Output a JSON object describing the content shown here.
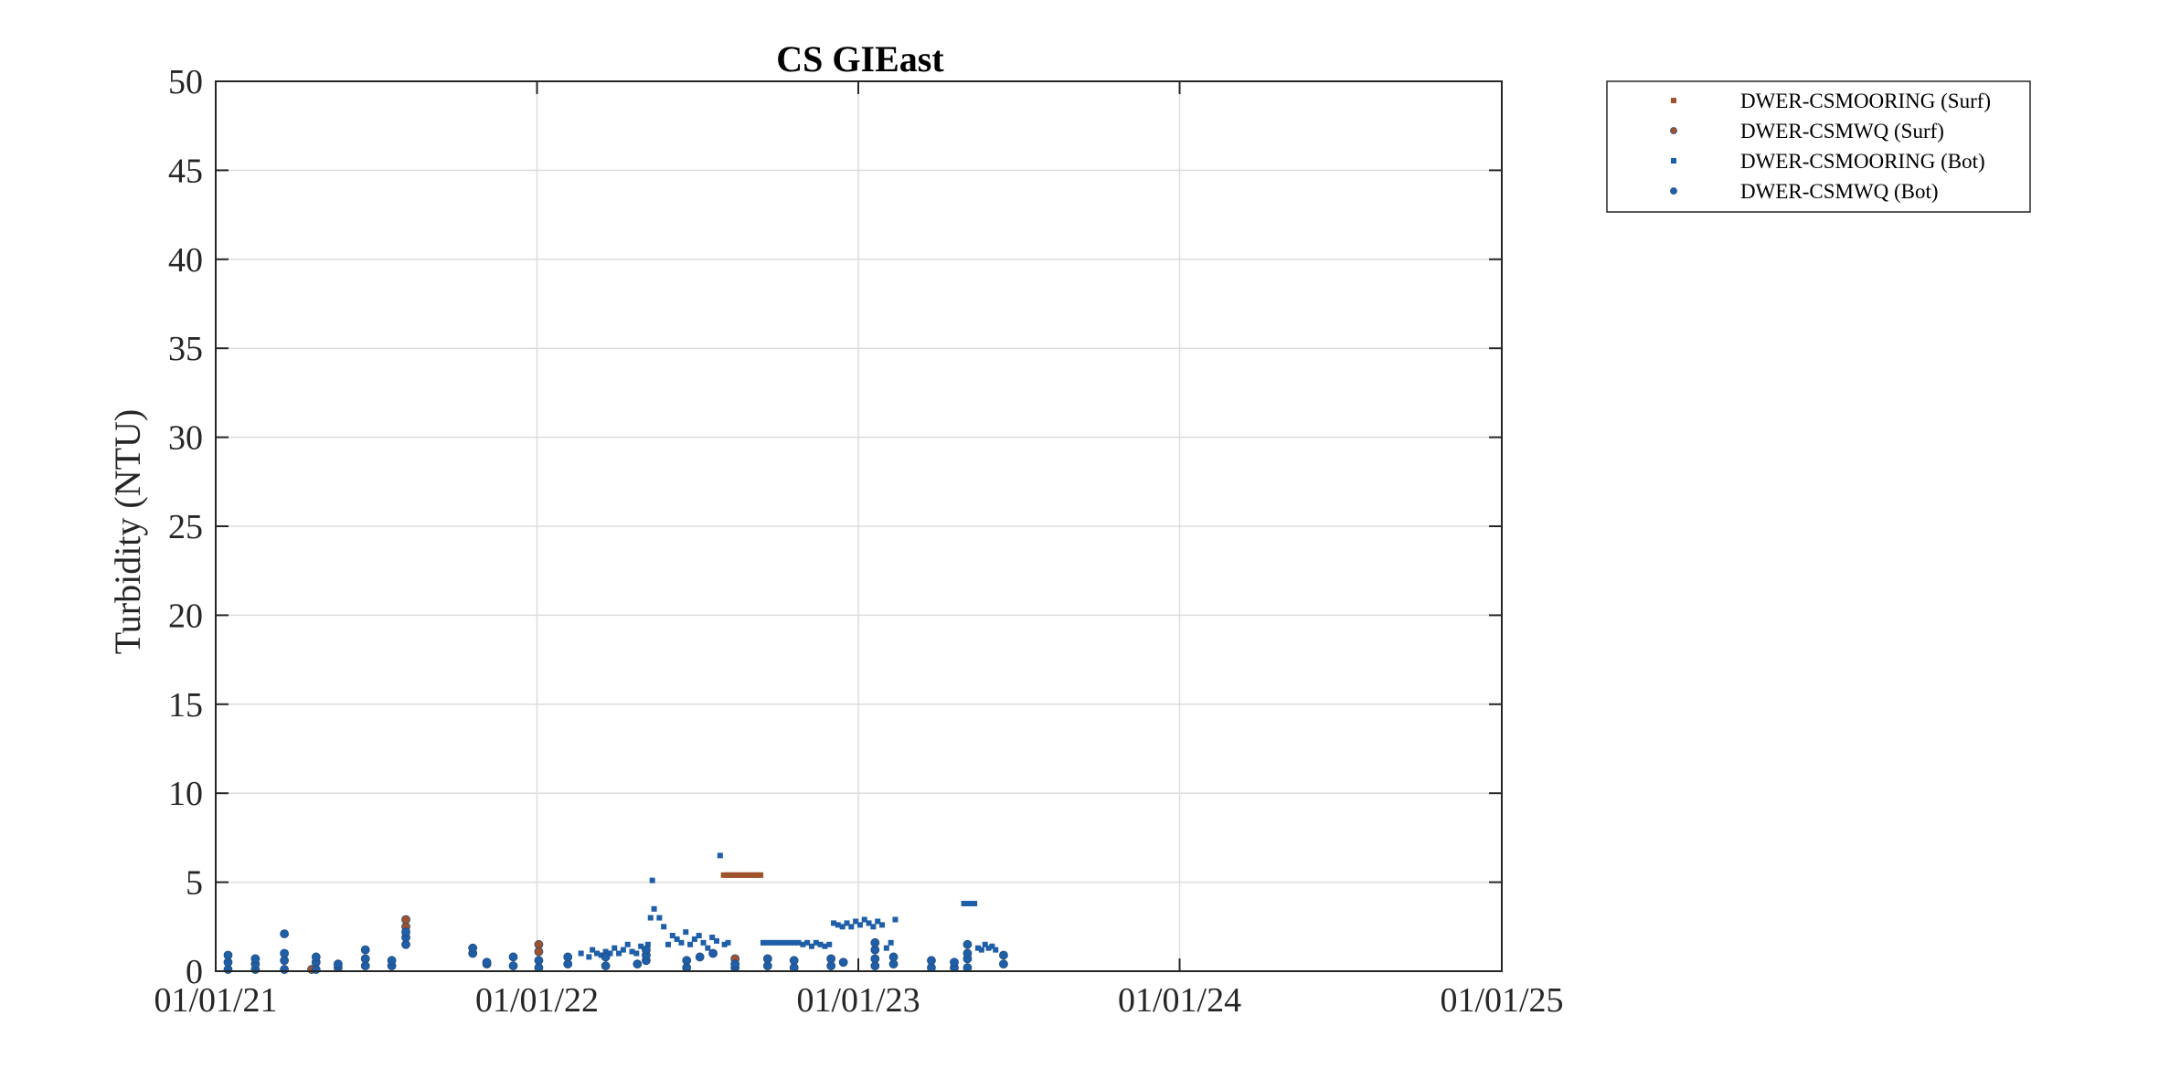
{
  "chart_data": {
    "type": "scatter",
    "title": "CS GIEast",
    "xlabel": "",
    "ylabel": "Turbidity (NTU)",
    "xlim": [
      "2021-01-01",
      "2025-01-01"
    ],
    "ylim": [
      0,
      50
    ],
    "xticks": [
      "01/01/21",
      "01/01/22",
      "01/01/23",
      "01/01/24",
      "01/01/25"
    ],
    "yticks": [
      0,
      5,
      10,
      15,
      20,
      25,
      30,
      35,
      40,
      45,
      50
    ],
    "grid": true,
    "legend_position": "outside-top-right",
    "colors": {
      "surf": "#A0522D",
      "bot": "#1F5FA8"
    },
    "series": [
      {
        "name": "DWER-CSMOORING (Surf)",
        "marker": "square",
        "color": "#A0522D",
        "points": [
          [
            "2022-08-01",
            5.4
          ],
          [
            "2022-08-04",
            5.4
          ],
          [
            "2022-08-07",
            5.4
          ],
          [
            "2022-08-10",
            5.4
          ],
          [
            "2022-08-13",
            5.4
          ],
          [
            "2022-08-16",
            5.4
          ],
          [
            "2022-08-19",
            5.4
          ],
          [
            "2022-08-22",
            5.4
          ],
          [
            "2022-08-25",
            5.4
          ],
          [
            "2022-08-28",
            5.4
          ],
          [
            "2022-08-31",
            5.4
          ],
          [
            "2022-09-03",
            5.4
          ],
          [
            "2022-09-06",
            5.4
          ],
          [
            "2022-09-09",
            5.4
          ],
          [
            "2022-09-12",
            5.4
          ]
        ]
      },
      {
        "name": "DWER-CSMWQ (Surf)",
        "marker": "circle",
        "color": "#A0522D",
        "points": [
          [
            "2021-04-20",
            0.1
          ],
          [
            "2021-08-05",
            2.5
          ],
          [
            "2021-08-05",
            2.9
          ],
          [
            "2022-01-03",
            1.5
          ],
          [
            "2022-01-03",
            1.1
          ],
          [
            "2022-08-14",
            0.7
          ]
        ]
      },
      {
        "name": "DWER-CSMOORING (Bot)",
        "marker": "square",
        "color": "#1F5FA8",
        "points": [
          [
            "2022-02-20",
            1.0
          ],
          [
            "2022-03-01",
            0.8
          ],
          [
            "2022-03-05",
            1.2
          ],
          [
            "2022-03-10",
            1.0
          ],
          [
            "2022-03-15",
            0.9
          ],
          [
            "2022-03-20",
            1.1
          ],
          [
            "2022-03-25",
            1.0
          ],
          [
            "2022-03-30",
            1.3
          ],
          [
            "2022-04-04",
            1.0
          ],
          [
            "2022-04-09",
            1.2
          ],
          [
            "2022-04-14",
            1.5
          ],
          [
            "2022-04-19",
            1.1
          ],
          [
            "2022-04-24",
            1.0
          ],
          [
            "2022-04-29",
            1.4
          ],
          [
            "2022-05-04",
            1.2
          ],
          [
            "2022-05-07",
            1.5
          ],
          [
            "2022-05-10",
            3.0
          ],
          [
            "2022-05-12",
            5.1
          ],
          [
            "2022-05-14",
            3.5
          ],
          [
            "2022-05-20",
            3.0
          ],
          [
            "2022-05-25",
            2.5
          ],
          [
            "2022-05-30",
            1.5
          ],
          [
            "2022-06-04",
            2.0
          ],
          [
            "2022-06-09",
            1.8
          ],
          [
            "2022-06-14",
            1.6
          ],
          [
            "2022-06-19",
            2.2
          ],
          [
            "2022-06-24",
            1.5
          ],
          [
            "2022-06-29",
            1.8
          ],
          [
            "2022-07-04",
            2.0
          ],
          [
            "2022-07-09",
            1.6
          ],
          [
            "2022-07-14",
            1.3
          ],
          [
            "2022-07-19",
            1.9
          ],
          [
            "2022-07-24",
            1.7
          ],
          [
            "2022-07-28",
            6.5
          ],
          [
            "2022-08-02",
            1.5
          ],
          [
            "2022-08-06",
            1.6
          ],
          [
            "2022-09-15",
            1.6
          ],
          [
            "2022-09-20",
            1.6
          ],
          [
            "2022-09-25",
            1.6
          ],
          [
            "2022-09-30",
            1.6
          ],
          [
            "2022-10-05",
            1.6
          ],
          [
            "2022-10-10",
            1.6
          ],
          [
            "2022-10-15",
            1.6
          ],
          [
            "2022-10-20",
            1.6
          ],
          [
            "2022-10-25",
            1.6
          ],
          [
            "2022-10-30",
            1.5
          ],
          [
            "2022-11-04",
            1.6
          ],
          [
            "2022-11-09",
            1.4
          ],
          [
            "2022-11-14",
            1.6
          ],
          [
            "2022-11-19",
            1.5
          ],
          [
            "2022-11-24",
            1.4
          ],
          [
            "2022-11-29",
            1.5
          ],
          [
            "2022-12-04",
            2.7
          ],
          [
            "2022-12-09",
            2.6
          ],
          [
            "2022-12-14",
            2.5
          ],
          [
            "2022-12-19",
            2.7
          ],
          [
            "2022-12-24",
            2.5
          ],
          [
            "2022-12-29",
            2.8
          ],
          [
            "2023-01-03",
            2.6
          ],
          [
            "2023-01-08",
            2.9
          ],
          [
            "2023-01-13",
            2.7
          ],
          [
            "2023-01-18",
            2.5
          ],
          [
            "2023-01-23",
            2.8
          ],
          [
            "2023-01-28",
            2.6
          ],
          [
            "2023-02-02",
            1.3
          ],
          [
            "2023-02-07",
            1.6
          ],
          [
            "2023-02-12",
            2.9
          ],
          [
            "2023-05-01",
            3.8
          ],
          [
            "2023-05-05",
            3.8
          ],
          [
            "2023-05-09",
            3.8
          ],
          [
            "2023-05-13",
            3.8
          ],
          [
            "2023-05-17",
            1.3
          ],
          [
            "2023-05-21",
            1.2
          ],
          [
            "2023-05-25",
            1.5
          ],
          [
            "2023-05-29",
            1.3
          ],
          [
            "2023-06-02",
            1.4
          ],
          [
            "2023-06-06",
            1.2
          ]
        ]
      },
      {
        "name": "DWER-CSMWQ (Bot)",
        "marker": "circle",
        "color": "#1F5FA8",
        "points": [
          [
            "2021-01-15",
            0.1
          ],
          [
            "2021-01-15",
            0.5
          ],
          [
            "2021-01-15",
            0.9
          ],
          [
            "2021-02-15",
            0.1
          ],
          [
            "2021-02-15",
            0.4
          ],
          [
            "2021-02-15",
            0.7
          ],
          [
            "2021-03-20",
            0.1
          ],
          [
            "2021-03-20",
            0.6
          ],
          [
            "2021-03-20",
            1.0
          ],
          [
            "2021-03-20",
            2.1
          ],
          [
            "2021-04-25",
            0.1
          ],
          [
            "2021-04-25",
            0.5
          ],
          [
            "2021-04-25",
            0.8
          ],
          [
            "2021-05-20",
            0.2
          ],
          [
            "2021-05-20",
            0.4
          ],
          [
            "2021-06-20",
            0.3
          ],
          [
            "2021-06-20",
            0.7
          ],
          [
            "2021-06-20",
            1.2
          ],
          [
            "2021-07-20",
            0.3
          ],
          [
            "2021-07-20",
            0.6
          ],
          [
            "2021-08-05",
            1.5
          ],
          [
            "2021-08-05",
            1.9
          ],
          [
            "2021-08-05",
            2.2
          ],
          [
            "2021-10-20",
            1.0
          ],
          [
            "2021-10-20",
            1.3
          ],
          [
            "2021-11-05",
            0.4
          ],
          [
            "2021-11-05",
            0.5
          ],
          [
            "2021-12-05",
            0.3
          ],
          [
            "2021-12-05",
            0.8
          ],
          [
            "2022-01-03",
            0.2
          ],
          [
            "2022-01-03",
            0.6
          ],
          [
            "2022-02-05",
            0.4
          ],
          [
            "2022-02-05",
            0.8
          ],
          [
            "2022-03-20",
            0.3
          ],
          [
            "2022-03-20",
            0.8
          ],
          [
            "2022-04-25",
            0.4
          ],
          [
            "2022-05-05",
            0.6
          ],
          [
            "2022-05-05",
            0.9
          ],
          [
            "2022-05-05",
            1.2
          ],
          [
            "2022-06-20",
            0.2
          ],
          [
            "2022-06-20",
            0.6
          ],
          [
            "2022-07-05",
            0.8
          ],
          [
            "2022-07-20",
            1.0
          ],
          [
            "2022-08-14",
            0.2
          ],
          [
            "2022-08-14",
            0.4
          ],
          [
            "2022-09-20",
            0.3
          ],
          [
            "2022-09-20",
            0.7
          ],
          [
            "2022-10-20",
            0.2
          ],
          [
            "2022-10-20",
            0.6
          ],
          [
            "2022-12-01",
            0.3
          ],
          [
            "2022-12-01",
            0.7
          ],
          [
            "2022-12-15",
            0.5
          ],
          [
            "2023-01-20",
            0.3
          ],
          [
            "2023-01-20",
            0.7
          ],
          [
            "2023-01-20",
            1.2
          ],
          [
            "2023-01-20",
            1.6
          ],
          [
            "2023-02-10",
            0.4
          ],
          [
            "2023-02-10",
            0.8
          ],
          [
            "2023-03-25",
            0.2
          ],
          [
            "2023-03-25",
            0.6
          ],
          [
            "2023-04-20",
            0.2
          ],
          [
            "2023-04-20",
            0.5
          ],
          [
            "2023-05-05",
            0.2
          ],
          [
            "2023-05-05",
            0.7
          ],
          [
            "2023-05-05",
            1.0
          ],
          [
            "2023-05-05",
            1.5
          ],
          [
            "2023-06-15",
            0.4
          ],
          [
            "2023-06-15",
            0.9
          ]
        ]
      }
    ]
  }
}
